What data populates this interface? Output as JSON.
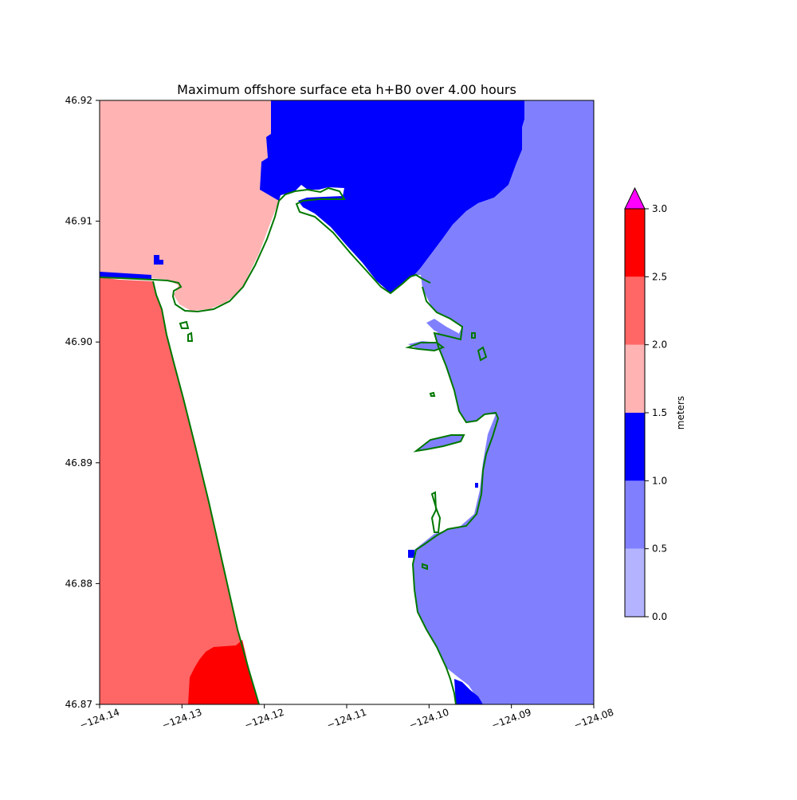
{
  "chart_data": {
    "type": "heatmap",
    "title": "Maximum offshore surface eta h+B0 over 4.00 hours",
    "xlim": [
      -124.14,
      -124.08
    ],
    "ylim": [
      46.87,
      46.92
    ],
    "x_ticks": [
      {
        "value": -124.14,
        "label": "−124.14"
      },
      {
        "value": -124.13,
        "label": "−124.13"
      },
      {
        "value": -124.12,
        "label": "−124.12"
      },
      {
        "value": -124.11,
        "label": "−124.11"
      },
      {
        "value": -124.1,
        "label": "−124.10"
      },
      {
        "value": -124.09,
        "label": "−124.09"
      },
      {
        "value": -124.08,
        "label": "−124.08"
      }
    ],
    "y_ticks": [
      {
        "value": 46.87,
        "label": "46.87"
      },
      {
        "value": 46.88,
        "label": "46.88"
      },
      {
        "value": 46.89,
        "label": "46.89"
      },
      {
        "value": 46.9,
        "label": "46.90"
      },
      {
        "value": 46.91,
        "label": "46.91"
      },
      {
        "value": 46.92,
        "label": "46.92"
      }
    ],
    "colorbar": {
      "label": "meters",
      "extend": "max",
      "extend_color": "#ff00ff",
      "bins": [
        {
          "min": 0.0,
          "max": 0.5,
          "color": "#b3b3ff"
        },
        {
          "min": 0.5,
          "max": 1.0,
          "color": "#8080ff"
        },
        {
          "min": 1.0,
          "max": 1.5,
          "color": "#0000ff"
        },
        {
          "min": 1.5,
          "max": 2.0,
          "color": "#ffb3b3"
        },
        {
          "min": 2.0,
          "max": 2.5,
          "color": "#ff6666"
        },
        {
          "min": 2.5,
          "max": 3.0,
          "color": "#ff0000"
        }
      ],
      "tick_labels": [
        "0.0",
        "0.5",
        "1.0",
        "1.5",
        "2.0",
        "2.5",
        "3.0"
      ]
    },
    "shoreline_color": "#007700",
    "regions": [
      {
        "name": "north-west offshore",
        "bin": "1.5-2.0",
        "color": "#ffb3b3"
      },
      {
        "name": "west ocean coast",
        "bin": "2.0-2.5",
        "color": "#ff6666"
      },
      {
        "name": "south-west coast max",
        "bin": "2.5-3.0",
        "color": "#ff0000"
      },
      {
        "name": "north bay channel",
        "bin": "1.0-1.5",
        "color": "#0000ff"
      },
      {
        "name": "east bay",
        "bin": "0.5-1.0",
        "color": "#8080ff"
      },
      {
        "name": "south-east channel",
        "bin": "1.0-1.5",
        "color": "#0000ff"
      }
    ]
  }
}
